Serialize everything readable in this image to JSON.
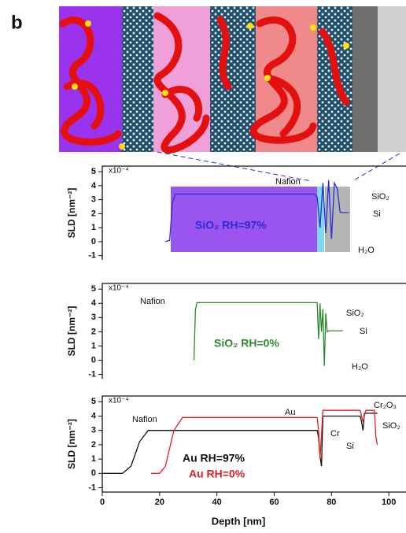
{
  "panel_label": "b",
  "chart_data": [
    {
      "type": "line",
      "ylabel": "SLD [nm⁻²]",
      "y_multiplier": "x10⁻⁴",
      "xlim": [
        0,
        106
      ],
      "ylim": [
        -1.3,
        5.4
      ],
      "yticks": [
        -1,
        0,
        1,
        2,
        3,
        4,
        5
      ],
      "annotations": [
        "Nafion",
        "SiO₂",
        "Si",
        "H₂O"
      ],
      "series": [
        {
          "name": "SiO₂ RH=97%",
          "color": "#2b2bd6",
          "x": [
            22,
            23.5,
            24.5,
            25.5,
            74,
            75,
            76,
            77,
            78,
            79,
            80,
            81,
            82,
            83,
            84,
            86
          ],
          "values": [
            0,
            0.1,
            2.8,
            3.4,
            3.4,
            3.2,
            1.0,
            4.2,
            0.6,
            4.4,
            0.2,
            4.2,
            3.8,
            2.1,
            2.07,
            2.07
          ]
        }
      ]
    },
    {
      "type": "line",
      "ylabel": "SLD [nm⁻²]",
      "y_multiplier": "x10⁻⁴",
      "xlim": [
        0,
        106
      ],
      "ylim": [
        -1.3,
        5.4
      ],
      "yticks": [
        -1,
        0,
        1,
        2,
        3,
        4,
        5
      ],
      "annotations": [
        "Nafion",
        "SiO₂",
        "Si",
        "H₂O"
      ],
      "series": [
        {
          "name": "SiO₂ RH=0%",
          "color": "#2a8a2a",
          "x": [
            32,
            32.5,
            33,
            75,
            75.5,
            76,
            76.5,
            77,
            77.5,
            78,
            78.5,
            79,
            80,
            84
          ],
          "values": [
            0,
            3.5,
            4.05,
            4.05,
            1.5,
            4.0,
            2.0,
            3.6,
            -0.4,
            3.3,
            2.0,
            2.07,
            2.07,
            2.07
          ]
        }
      ]
    },
    {
      "type": "line",
      "ylabel": "SLD [nm⁻²]",
      "y_multiplier": "x10⁻⁴",
      "xlabel": "Depth [nm]",
      "xlim": [
        0,
        106
      ],
      "xticks": [
        0,
        20,
        40,
        60,
        80,
        100
      ],
      "ylim": [
        -1.3,
        5.4
      ],
      "yticks": [
        -1,
        0,
        1,
        2,
        3,
        4,
        5
      ],
      "annotations": [
        "Nafion",
        "Au",
        "Cr₂O₃",
        "SiO₂",
        "Cr",
        "Si"
      ],
      "series": [
        {
          "name": "Au  RH=97%",
          "color": "#111111",
          "x": [
            0,
            7,
            10,
            13,
            16,
            75,
            75.5,
            76,
            76.5,
            77,
            90,
            90.5,
            91,
            91.5,
            92,
            96
          ],
          "values": [
            0,
            0,
            0.5,
            2.2,
            3.0,
            3.0,
            2.5,
            1.2,
            0.5,
            4.0,
            4.0,
            3.6,
            3.0,
            4.2,
            4.2,
            4.2
          ]
        },
        {
          "name": "Au  RH=0%",
          "color": "#e02020",
          "x": [
            17,
            20,
            22,
            25,
            28,
            75,
            75.5,
            76,
            77,
            90,
            91,
            92,
            95,
            95.5,
            96
          ],
          "values": [
            0,
            0,
            0.5,
            3.0,
            3.9,
            3.9,
            3.0,
            1.0,
            4.4,
            4.4,
            3.6,
            4.4,
            4.4,
            2.5,
            2.0
          ]
        }
      ]
    }
  ]
}
